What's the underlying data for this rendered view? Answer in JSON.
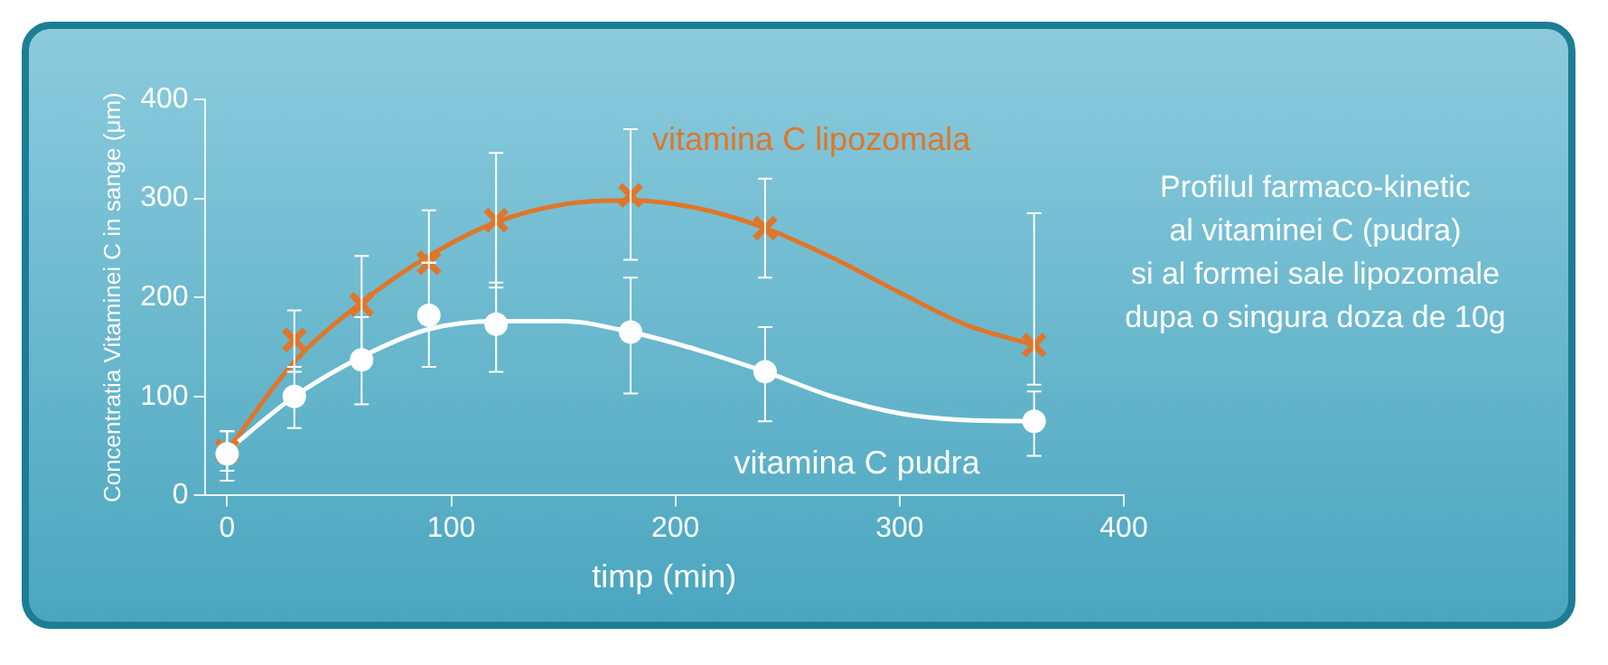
{
  "chart_data": {
    "type": "scatter",
    "xlabel": "timp (min)",
    "ylabel": "Concentratia Vitaminei C in sange (μm)",
    "xlim": [
      -10,
      400
    ],
    "xticks": [
      0,
      100,
      200,
      300,
      400
    ],
    "ylim": [
      0,
      400
    ],
    "yticks": [
      0,
      100,
      200,
      300,
      400
    ],
    "grid": false,
    "legend": false,
    "annotations": [
      "Profilul farmaco-kinetic\nal vitaminei C (pudra)\nsi al formei sale lipozomale\ndupa o singura doza de 10g"
    ],
    "series": [
      {
        "type": "line",
        "color": "#e0762a",
        "marker": "none",
        "x": [
          0,
          30,
          60,
          90,
          120,
          150,
          180,
          210,
          240,
          270,
          300,
          330,
          360
        ],
        "values": [
          45,
          135,
          195,
          242,
          276,
          294,
          298,
          290,
          270,
          240,
          205,
          172,
          152
        ]
      },
      {
        "type": "line",
        "color": "#ffffff",
        "marker": "none",
        "x": [
          0,
          30,
          60,
          90,
          120,
          150,
          180,
          210,
          240,
          270,
          300,
          330,
          360
        ],
        "values": [
          45,
          100,
          140,
          168,
          176,
          176,
          165,
          147,
          125,
          100,
          83,
          76,
          75
        ]
      },
      {
        "type": "scatter",
        "name": "vitamina C lipozomala",
        "color": "#e0762a",
        "marker": "cross",
        "x": [
          0,
          30,
          60,
          90,
          120,
          180,
          240,
          360
        ],
        "values": [
          45,
          157,
          193,
          235,
          278,
          303,
          270,
          152
        ],
        "errors": [
          [
            25,
            65
          ],
          [
            125,
            187
          ],
          [
            145,
            242
          ],
          [
            235,
            288
          ],
          [
            210,
            346
          ],
          [
            238,
            370
          ],
          [
            220,
            320
          ],
          [
            112,
            285
          ]
        ]
      },
      {
        "type": "scatter",
        "name": "vitamina C pudra",
        "color": "#ffffff",
        "marker": "circle",
        "x": [
          0,
          30,
          60,
          90,
          120,
          180,
          240,
          360
        ],
        "values": [
          42,
          100,
          137,
          182,
          173,
          165,
          125,
          75
        ],
        "errors": [
          [
            15,
            65
          ],
          [
            68,
            130
          ],
          [
            92,
            180
          ],
          [
            130,
            235
          ],
          [
            125,
            215
          ],
          [
            103,
            220
          ],
          [
            75,
            170
          ],
          [
            40,
            105
          ]
        ]
      }
    ]
  }
}
